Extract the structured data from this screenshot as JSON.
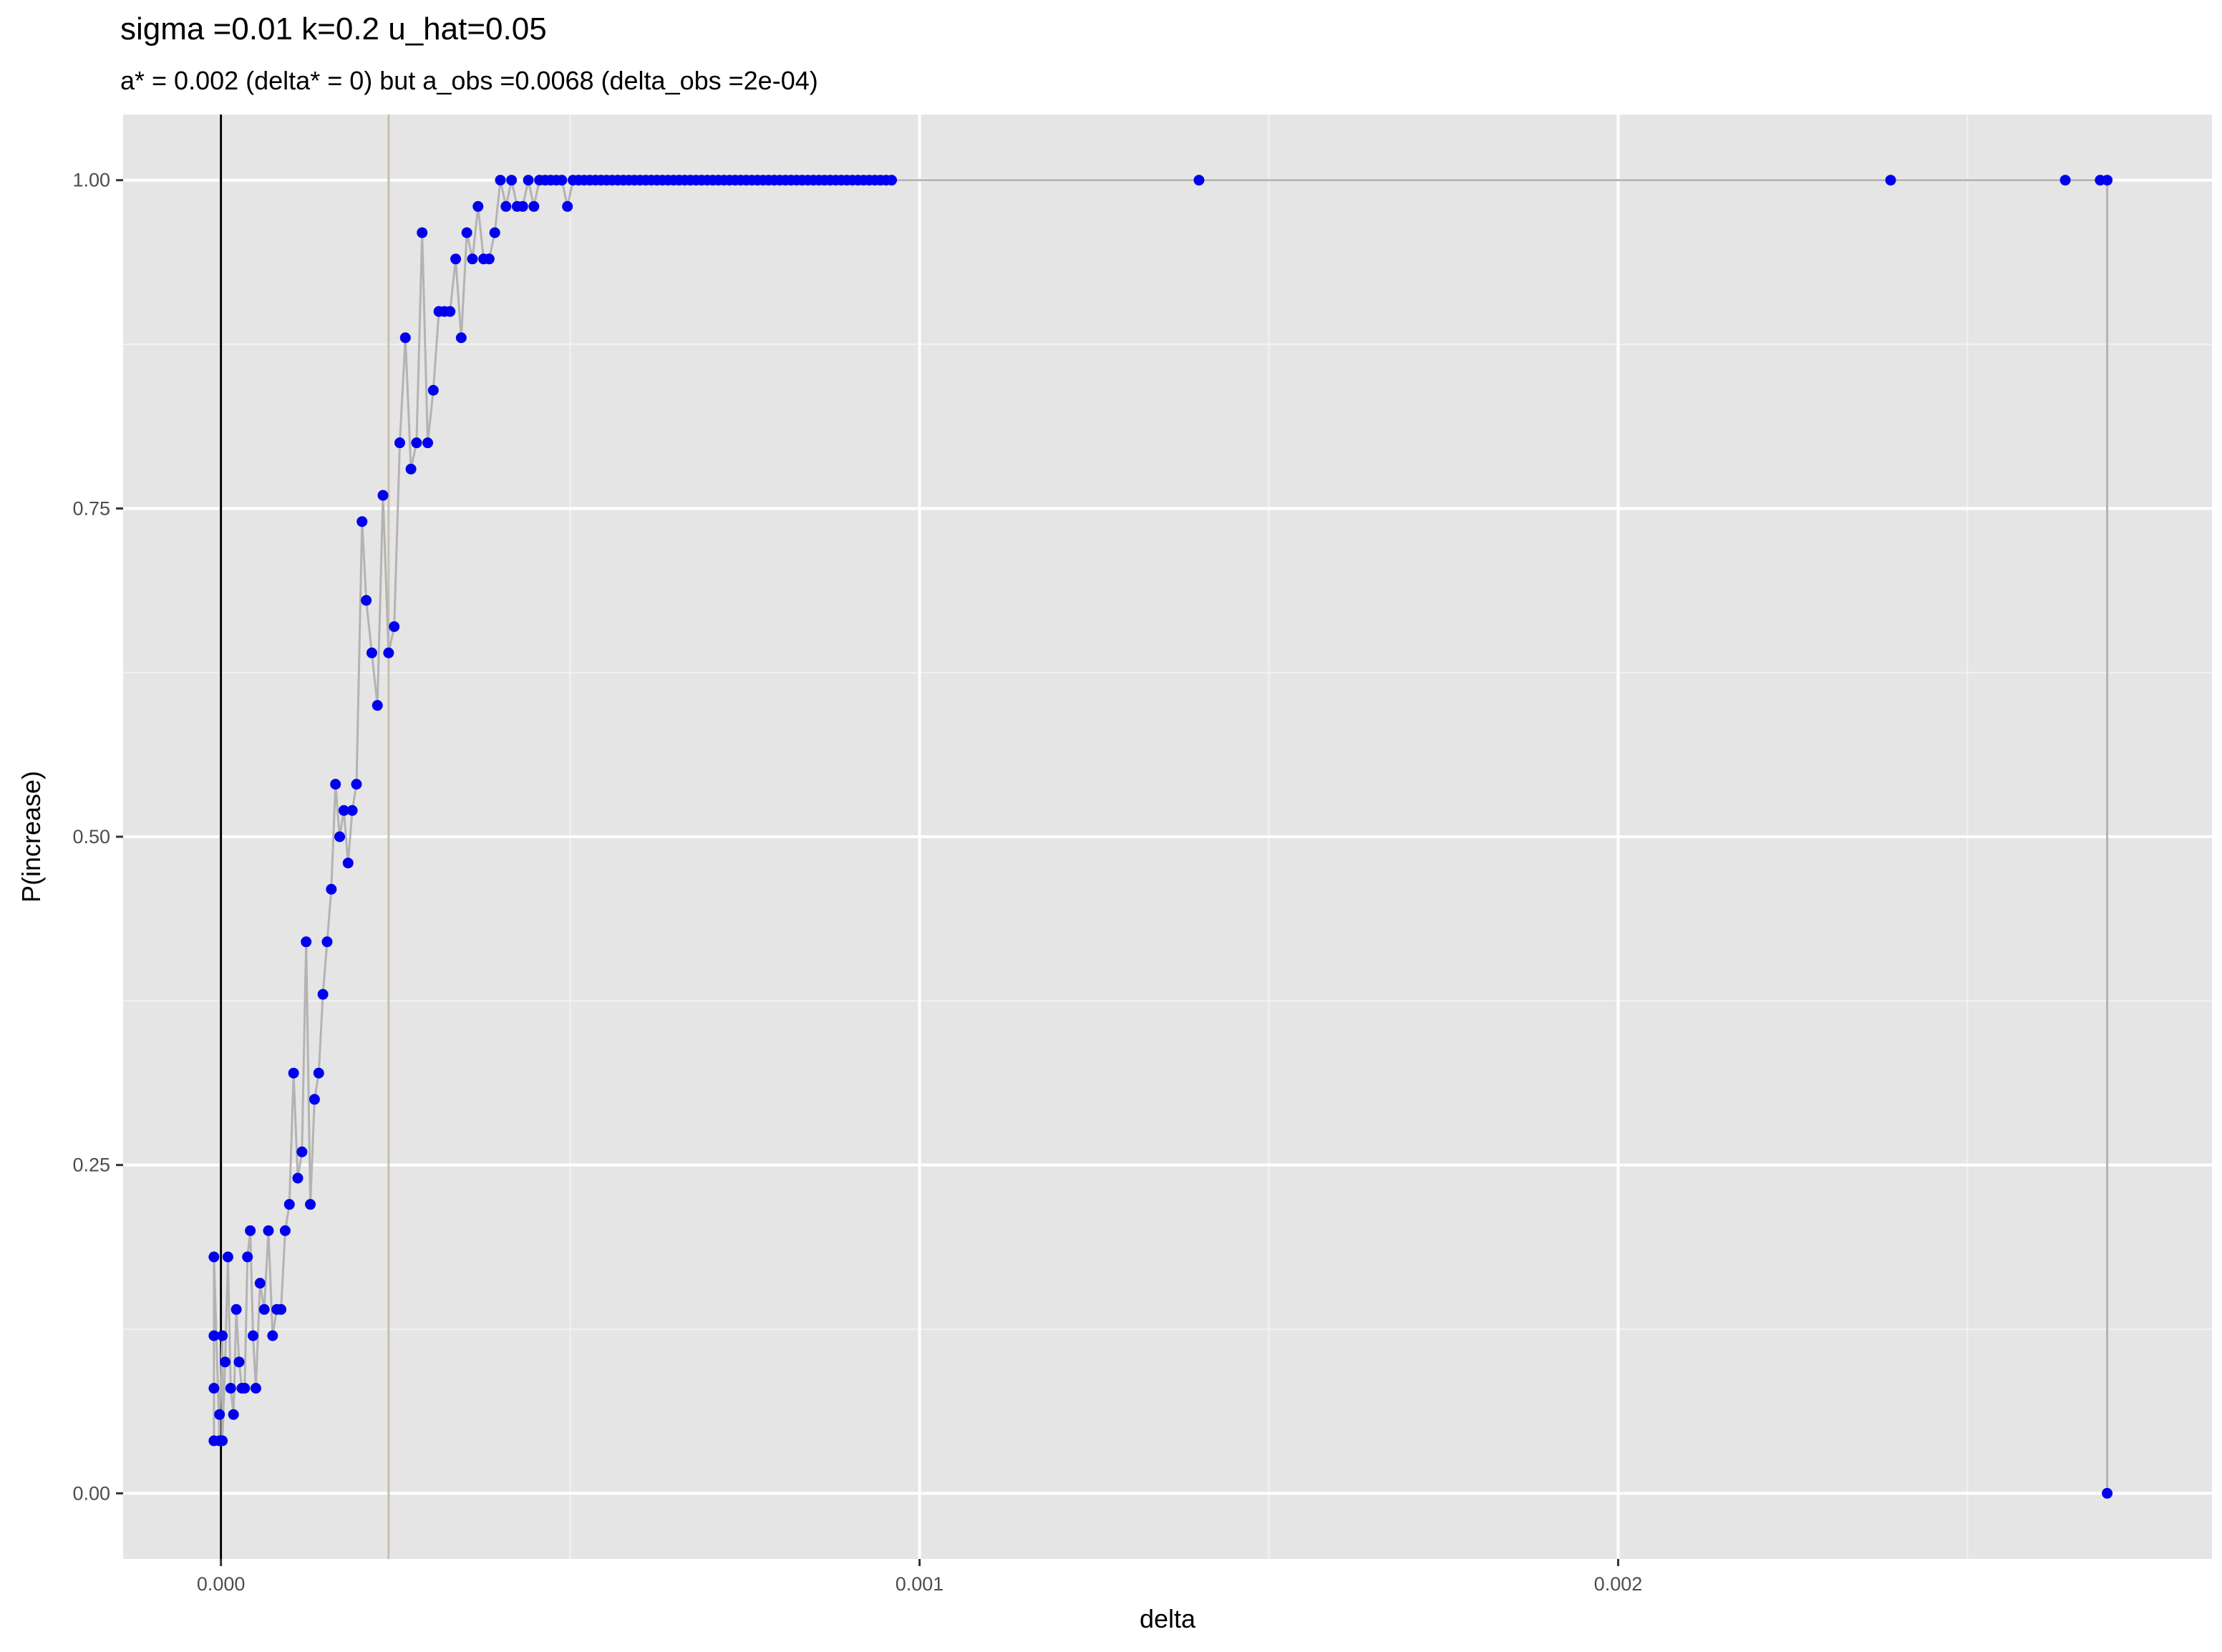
{
  "chart_data": {
    "type": "scatter",
    "title": "sigma =0.01  k=0.2  u_hat=0.05",
    "subtitle": "a* = 0.002 (delta* = 0) but a_obs =0.0068 (delta_obs =2e-04)",
    "xlabel": "delta",
    "ylabel": "P(increase)",
    "xlim": [
      -0.00014,
      0.00285
    ],
    "ylim": [
      -0.05,
      1.05
    ],
    "x_ticks": [
      0,
      0.001,
      0.002
    ],
    "x_tick_labels": [
      "0.000",
      "0.001",
      "0.002"
    ],
    "y_ticks": [
      0,
      0.25,
      0.5,
      0.75,
      1
    ],
    "y_tick_labels": [
      "0.00",
      "0.25",
      "0.50",
      "0.75",
      "1.00"
    ],
    "grid": true,
    "vlines": [
      {
        "x": 0,
        "color": "#000000"
      },
      {
        "x": 0.00024,
        "color": "#c8bfad"
      }
    ],
    "line_color": "#b3b3b3",
    "point_color": "#0000ee",
    "panel_background": "#e5e5e5",
    "series": [
      {
        "x": [
          -1e-05,
          -1e-05,
          -1e-05,
          -1e-05,
          -2e-06,
          -2e-06,
          2e-06,
          2e-06,
          6e-06,
          1e-05,
          1.4e-05,
          1.8e-05,
          2.2e-05,
          2.6e-05,
          3e-05,
          3.4e-05,
          3.8e-05,
          4.2e-05,
          4.6e-05,
          5e-05,
          5.6e-05,
          6.2e-05,
          6.8e-05,
          7.4e-05,
          8e-05,
          8.6e-05,
          9.2e-05,
          9.8e-05,
          0.000104,
          0.00011,
          0.000116,
          0.000122,
          0.000128,
          0.000134,
          0.00014,
          0.000146,
          0.000152,
          0.000158,
          0.000164,
          0.00017,
          0.000176,
          0.000182,
          0.000188,
          0.000194,
          0.000202,
          0.000208,
          0.000216,
          0.000224,
          0.000232,
          0.00024,
          0.000248,
          0.000256,
          0.000264,
          0.000272,
          0.00028,
          0.000288,
          0.000296,
          0.000304,
          0.000312,
          0.00032,
          0.000328,
          0.000336,
          0.000344,
          0.000352,
          0.00036,
          0.000368,
          0.000376,
          0.000384,
          0.000392,
          0.0004,
          0.000408,
          0.000416,
          0.000424,
          0.000432,
          0.00044,
          0.000448,
          0.000456,
          0.000464,
          0.000472,
          0.00048,
          0.000488,
          0.000496,
          0.000504,
          0.000512,
          0.00052,
          0.000528,
          0.000536,
          0.000544,
          0.000552,
          0.00056,
          0.000568,
          0.000576,
          0.000584,
          0.000592,
          0.0006,
          0.000608,
          0.000616,
          0.000624,
          0.000632,
          0.00064,
          0.000648,
          0.000656,
          0.000664,
          0.000672,
          0.00068,
          0.000688,
          0.000696,
          0.000704,
          0.000712,
          0.00072,
          0.000728,
          0.000736,
          0.000744,
          0.000752,
          0.00076,
          0.000768,
          0.000776,
          0.000784,
          0.000792,
          0.0008,
          0.000808,
          0.000816,
          0.000824,
          0.000832,
          0.00084,
          0.000848,
          0.000856,
          0.000864,
          0.000872,
          0.00088,
          0.000888,
          0.000896,
          0.000904,
          0.000912,
          0.00092,
          0.000928,
          0.000936,
          0.000944,
          0.000952,
          0.00096,
          0.0014,
          0.00239,
          0.00264,
          0.00269,
          0.0027,
          0.0027
        ],
        "y": [
          0.04,
          0.08,
          0.12,
          0.18,
          0.04,
          0.06,
          0.12,
          0.04,
          0.1,
          0.18,
          0.08,
          0.06,
          0.14,
          0.1,
          0.08,
          0.08,
          0.18,
          0.2,
          0.12,
          0.08,
          0.16,
          0.14,
          0.2,
          0.12,
          0.14,
          0.14,
          0.2,
          0.22,
          0.32,
          0.24,
          0.26,
          0.42,
          0.22,
          0.3,
          0.32,
          0.38,
          0.42,
          0.46,
          0.54,
          0.5,
          0.52,
          0.48,
          0.52,
          0.54,
          0.74,
          0.68,
          0.64,
          0.6,
          0.76,
          0.64,
          0.66,
          0.8,
          0.88,
          0.78,
          0.8,
          0.96,
          0.8,
          0.84,
          0.9,
          0.9,
          0.9,
          0.94,
          0.88,
          0.96,
          0.94,
          0.98,
          0.94,
          0.94,
          0.96,
          1.0,
          0.98,
          1.0,
          0.98,
          0.98,
          1.0,
          0.98,
          1.0,
          1.0,
          1.0,
          1.0,
          1.0,
          0.98,
          1.0,
          1.0,
          1.0,
          1.0,
          1.0,
          1.0,
          1.0,
          1.0,
          1.0,
          1.0,
          1.0,
          1.0,
          1.0,
          1.0,
          1.0,
          1.0,
          1.0,
          1.0,
          1.0,
          1.0,
          1.0,
          1.0,
          1.0,
          1.0,
          1.0,
          1.0,
          1.0,
          1.0,
          1.0,
          1.0,
          1.0,
          1.0,
          1.0,
          1.0,
          1.0,
          1.0,
          1.0,
          1.0,
          1.0,
          1.0,
          1.0,
          1.0,
          1.0,
          1.0,
          1.0,
          1.0,
          1.0,
          1.0,
          1.0,
          1.0,
          1.0,
          1.0,
          1.0,
          1.0,
          1.0,
          1.0,
          1.0,
          1.0,
          1.0,
          1.0,
          1.0,
          1.0,
          1.0,
          0.0
        ]
      }
    ]
  }
}
